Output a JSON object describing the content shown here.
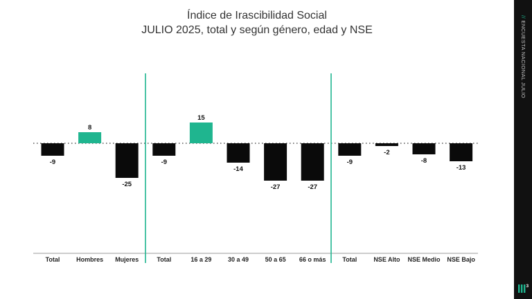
{
  "title": "Índice de Irascibilidad Social",
  "subtitle": "JULIO 2025, total y según género, edad y NSE",
  "sidebar": {
    "prefix": "//",
    "label": "ENCUESTA NACIONAL JULIO"
  },
  "colors": {
    "positive": "#1fb58f",
    "negative": "#0a0a0a",
    "divider": "#1fb58f",
    "sidebar": "#111111"
  },
  "chart_data": {
    "type": "bar",
    "title": "Índice de Irascibilidad Social",
    "subtitle": "JULIO 2025, total y según género, edad y NSE",
    "categories": [
      "Total",
      "Hombres",
      "Mujeres",
      "Total",
      "16 a 29",
      "30 a 49",
      "50 a 65",
      "66 o más",
      "Total",
      "NSE Alto",
      "NSE Medio",
      "NSE Bajo"
    ],
    "values": [
      -9,
      8,
      -25,
      -9,
      15,
      -14,
      -27,
      -27,
      -9,
      -2,
      -8,
      -13
    ],
    "groups": [
      {
        "categories": [
          "Total",
          "Hombres",
          "Mujeres"
        ]
      },
      {
        "categories": [
          "Total",
          "16 a 29",
          "30 a 49",
          "50 a 65",
          "66 o más"
        ]
      },
      {
        "categories": [
          "Total",
          "NSE Alto",
          "NSE Medio",
          "NSE Bajo"
        ]
      }
    ],
    "baseline": 0,
    "baseline_style": "dotted",
    "legend": "none",
    "grid": false
  }
}
